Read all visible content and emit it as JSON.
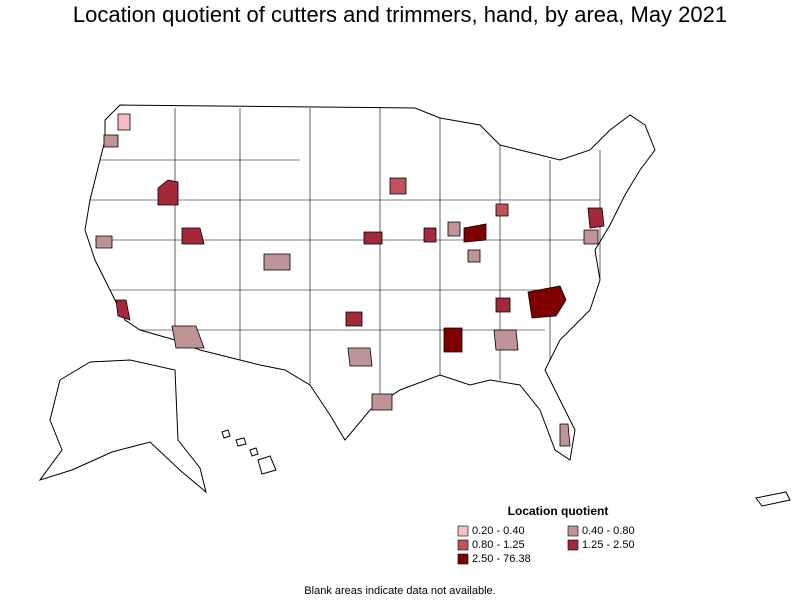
{
  "header": {
    "title": "Location quotient of cutters and trimmers, hand, by area, May 2021"
  },
  "legend": {
    "title": "Location quotient",
    "items": [
      {
        "label": "0.20 - 0.40",
        "color": "#f7bcc6"
      },
      {
        "label": "0.40 - 0.80",
        "color": "#c09494"
      },
      {
        "label": "0.80 - 1.25",
        "color": "#c0525e"
      },
      {
        "label": "1.25 - 2.50",
        "color": "#a3283a"
      },
      {
        "label": "2.50 - 76.38",
        "color": "#800000"
      }
    ]
  },
  "note": "Blank areas indicate data not available."
}
